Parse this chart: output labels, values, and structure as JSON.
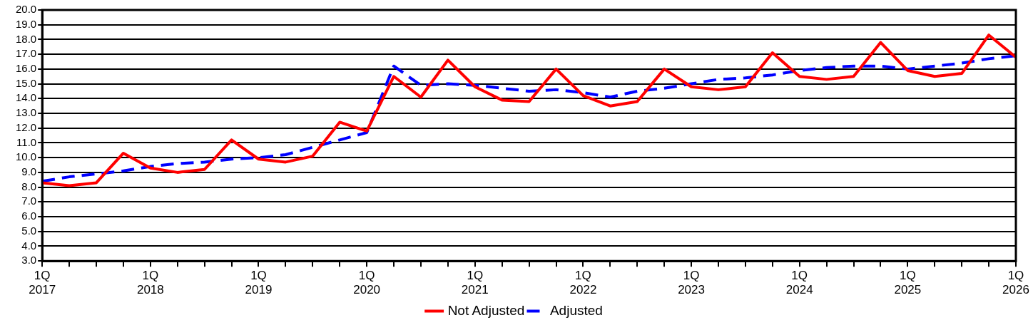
{
  "chart_data": {
    "type": "line",
    "categories": [
      "1Q 2017",
      null,
      null,
      null,
      "1Q 2018",
      null,
      null,
      null,
      "1Q 2019",
      null,
      null,
      null,
      "1Q 2020",
      null,
      null,
      null,
      "1Q 2021",
      null,
      null,
      null,
      "1Q 2022",
      null,
      null,
      null,
      "1Q 2023",
      null,
      null,
      null,
      "1Q 2024",
      null,
      null,
      null,
      "1Q 2025",
      null,
      null,
      null,
      "1Q 2026"
    ],
    "series": [
      {
        "name": "Not Adjusted",
        "color": "#ff0000",
        "line_style": "solid",
        "values": [
          8.3,
          8.1,
          8.3,
          10.3,
          9.3,
          9.0,
          9.2,
          11.2,
          9.9,
          9.7,
          10.1,
          12.4,
          11.8,
          15.5,
          14.1,
          16.6,
          14.8,
          13.9,
          13.8,
          16.0,
          14.2,
          13.5,
          13.8,
          16.0,
          14.8,
          14.6,
          14.8,
          17.1,
          15.5,
          15.3,
          15.5,
          17.8,
          15.9,
          15.5,
          15.7,
          18.3,
          16.8
        ]
      },
      {
        "name": "Adjusted",
        "color": "#0000ff",
        "line_style": "dashed",
        "values": [
          8.4,
          8.7,
          8.9,
          9.1,
          9.4,
          9.6,
          9.7,
          9.9,
          10.0,
          10.2,
          10.7,
          11.2,
          11.7,
          16.2,
          14.9,
          15.0,
          14.9,
          14.7,
          14.5,
          14.6,
          14.4,
          14.1,
          14.5,
          14.7,
          15.0,
          15.3,
          15.4,
          15.6,
          15.9,
          16.1,
          16.2,
          16.2,
          16.0,
          16.2,
          16.4,
          16.7,
          16.9
        ]
      }
    ],
    "ylim": [
      3,
      20
    ],
    "yticks": [
      {
        "value": 3,
        "label": "3.0"
      },
      {
        "value": 4,
        "label": "4.0"
      },
      {
        "value": 5,
        "label": "5.0"
      },
      {
        "value": 6,
        "label": "6.0"
      },
      {
        "value": 7,
        "label": "7.0"
      },
      {
        "value": 8,
        "label": "8.0"
      },
      {
        "value": 9,
        "label": "9.0"
      },
      {
        "value": 10,
        "label": "10.0"
      },
      {
        "value": 11,
        "label": "11.0"
      },
      {
        "value": 12,
        "label": "12.0"
      },
      {
        "value": 13,
        "label": "13.0"
      },
      {
        "value": 14,
        "label": "14.0"
      },
      {
        "value": 15,
        "label": "15.0"
      },
      {
        "value": 16,
        "label": "16.0"
      },
      {
        "value": 17,
        "label": "17.0"
      },
      {
        "value": 18,
        "label": "18.0"
      },
      {
        "value": 19,
        "label": "19.0"
      },
      {
        "value": 20,
        "label": "20.0"
      }
    ],
    "grid": "y",
    "legend": "bottom",
    "marker": "none"
  }
}
